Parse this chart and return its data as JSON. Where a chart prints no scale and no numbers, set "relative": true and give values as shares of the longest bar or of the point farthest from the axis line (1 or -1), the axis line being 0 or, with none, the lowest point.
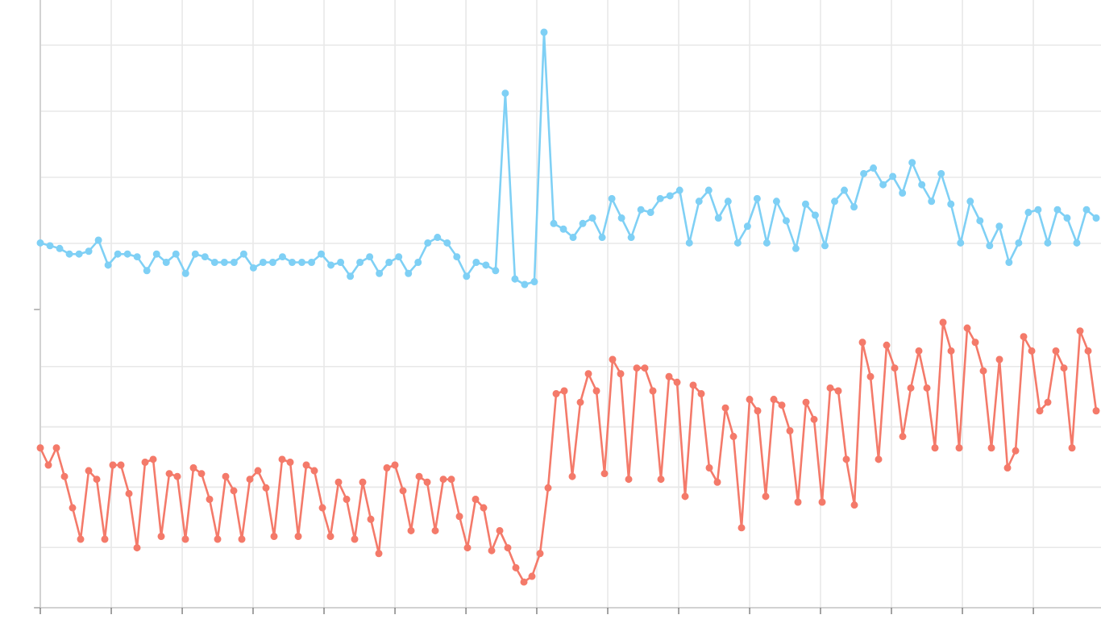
{
  "chart_data": [
    {
      "type": "line",
      "relative": true,
      "grid": true,
      "marker": "circle",
      "categories": [
        null,
        null,
        null,
        null,
        null,
        null,
        null,
        null,
        null,
        null,
        null,
        null,
        null,
        null,
        null,
        null,
        null,
        null,
        null,
        null,
        null,
        null,
        null,
        null,
        null,
        null,
        null,
        null,
        null,
        null,
        null,
        null,
        null,
        null,
        null,
        null,
        null,
        null,
        null,
        null,
        null,
        null,
        null,
        null,
        null,
        null,
        null,
        null,
        null,
        null,
        null,
        null,
        null,
        null,
        null,
        null,
        null,
        null,
        null,
        null,
        null,
        null,
        null,
        null,
        null,
        null,
        null,
        null,
        null,
        null,
        null,
        null,
        null,
        null,
        null,
        null,
        null,
        null,
        null,
        null,
        null,
        null,
        null,
        null,
        null,
        null,
        null,
        null,
        null,
        null,
        null,
        null,
        null,
        null,
        null,
        null,
        null,
        null,
        null,
        null,
        null,
        null,
        null,
        null,
        null,
        null,
        null,
        null,
        null,
        null
      ],
      "series": [
        {
          "color": "#7fd0f5",
          "values": [
            0.24,
            0.23,
            0.22,
            0.2,
            0.2,
            0.21,
            0.25,
            0.16,
            0.2,
            0.2,
            0.19,
            0.14,
            0.2,
            0.17,
            0.2,
            0.13,
            0.2,
            0.19,
            0.17,
            0.17,
            0.17,
            0.2,
            0.15,
            0.17,
            0.17,
            0.19,
            0.17,
            0.17,
            0.17,
            0.2,
            0.16,
            0.17,
            0.12,
            0.17,
            0.19,
            0.13,
            0.17,
            0.19,
            0.13,
            0.17,
            0.24,
            0.26,
            0.24,
            0.19,
            0.12,
            0.17,
            0.16,
            0.14,
            0.78,
            0.11,
            0.09,
            0.1,
            1,
            0.31,
            0.29,
            0.26,
            0.31,
            0.33,
            0.26,
            0.4,
            0.33,
            0.26,
            0.36,
            0.35,
            0.4,
            0.41,
            0.43,
            0.24,
            0.39,
            0.43,
            0.33,
            0.39,
            0.24,
            0.3,
            0.4,
            0.24,
            0.39,
            0.32,
            0.22,
            0.38,
            0.34,
            0.23,
            0.39,
            0.43,
            0.37,
            0.49,
            0.51,
            0.45,
            0.48,
            0.42,
            0.53,
            0.45,
            0.39,
            0.49,
            0.38,
            0.24,
            0.39,
            0.32,
            0.23,
            0.3,
            0.17,
            0.24,
            0.35,
            0.36,
            0.24,
            0.36,
            0.33,
            0.24,
            0.36,
            0.33
          ]
        }
      ]
    },
    {
      "type": "line",
      "relative": true,
      "grid": true,
      "marker": "circle",
      "categories": [
        null,
        null,
        null,
        null,
        null,
        null,
        null,
        null,
        null,
        null,
        null,
        null,
        null,
        null,
        null,
        null,
        null,
        null,
        null,
        null,
        null,
        null,
        null,
        null,
        null,
        null,
        null,
        null,
        null,
        null,
        null,
        null,
        null,
        null,
        null,
        null,
        null,
        null,
        null,
        null,
        null,
        null,
        null,
        null,
        null,
        null,
        null,
        null,
        null,
        null,
        null,
        null,
        null,
        null,
        null,
        null,
        null,
        null,
        null,
        null,
        null,
        null,
        null,
        null,
        null,
        null,
        null,
        null,
        null,
        null,
        null,
        null,
        null,
        null,
        null,
        null,
        null,
        null,
        null,
        null,
        null,
        null,
        null,
        null,
        null,
        null,
        null,
        null,
        null,
        null,
        null,
        null,
        null,
        null,
        null,
        null,
        null,
        null,
        null,
        null,
        null,
        null,
        null,
        null,
        null,
        null,
        null,
        null,
        null,
        null,
        null,
        null,
        null,
        null,
        null,
        null,
        null,
        null,
        null,
        null,
        null,
        null,
        null,
        null,
        null,
        null,
        null,
        null,
        null,
        null,
        null,
        null
      ],
      "series": [
        {
          "color": "#f47a6a",
          "values": [
            0.56,
            0.5,
            0.56,
            0.46,
            0.35,
            0.24,
            0.48,
            0.45,
            0.24,
            0.5,
            0.5,
            0.4,
            0.21,
            0.51,
            0.52,
            0.25,
            0.47,
            0.46,
            0.24,
            0.49,
            0.47,
            0.38,
            0.24,
            0.46,
            0.41,
            0.24,
            0.45,
            0.48,
            0.42,
            0.25,
            0.52,
            0.51,
            0.25,
            0.5,
            0.48,
            0.35,
            0.25,
            0.44,
            0.38,
            0.24,
            0.44,
            0.31,
            0.19,
            0.49,
            0.5,
            0.41,
            0.27,
            0.46,
            0.44,
            0.27,
            0.45,
            0.45,
            0.32,
            0.21,
            0.38,
            0.35,
            0.2,
            0.27,
            0.21,
            0.14,
            0.09,
            0.11,
            0.19,
            0.42,
            0.75,
            0.76,
            0.46,
            0.72,
            0.82,
            0.76,
            0.47,
            0.87,
            0.82,
            0.45,
            0.84,
            0.84,
            0.76,
            0.45,
            0.81,
            0.79,
            0.39,
            0.78,
            0.75,
            0.49,
            0.44,
            0.7,
            0.6,
            0.28,
            0.73,
            0.69,
            0.39,
            0.73,
            0.71,
            0.62,
            0.37,
            0.72,
            0.66,
            0.37,
            0.77,
            0.76,
            0.52,
            0.36,
            0.93,
            0.81,
            0.52,
            0.92,
            0.84,
            0.6,
            0.77,
            0.9,
            0.77,
            0.56,
            1,
            0.9,
            0.56,
            0.98,
            0.93,
            0.83,
            0.56,
            0.87,
            0.49,
            0.55,
            0.95,
            0.9,
            0.69,
            0.72,
            0.9,
            0.84,
            0.56,
            0.97,
            0.9,
            0.69
          ]
        }
      ]
    }
  ]
}
